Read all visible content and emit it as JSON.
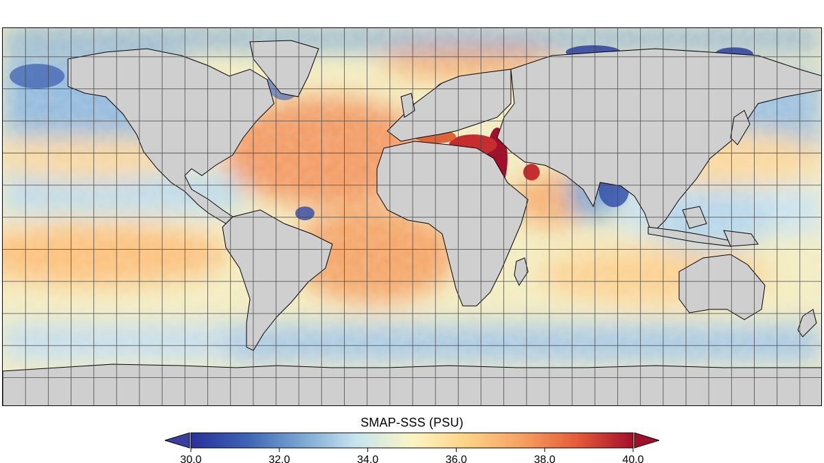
{
  "map": {
    "variable": "SMAP-SSS",
    "colors": {
      "land": "#cfcfcf",
      "coastline": "#000000",
      "grid": "#444444"
    }
  },
  "colorbar": {
    "title": "SMAP-SSS (PSU)",
    "min": 30.0,
    "max": 40.0,
    "ticks": [
      "30.0",
      "32.0",
      "34.0",
      "36.0",
      "38.0",
      "40.0"
    ],
    "extend": "both",
    "under_color": "#3b3f9e",
    "over_color": "#a0102a",
    "palette": [
      "#28309a",
      "#3d63b4",
      "#7aa6d2",
      "#c8e4ef",
      "#fbf5c4",
      "#fdd285",
      "#f6a060",
      "#e45a38",
      "#a40e2a"
    ]
  }
}
